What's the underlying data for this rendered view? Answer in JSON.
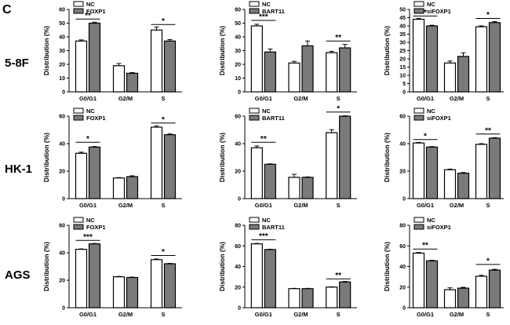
{
  "figure": {
    "panel_letter": "C",
    "rows": [
      "5-8F",
      "HK-1",
      "AGS"
    ],
    "colors": {
      "control_fill": "#ffffff",
      "treatment_fill": "#7a7a7a",
      "stroke": "#000000"
    }
  },
  "chart_data": [
    {
      "type": "bar",
      "row": "5-8F",
      "categories": [
        "G0/G1",
        "G2/M",
        "S"
      ],
      "series": [
        {
          "name": "NC",
          "values": [
            37,
            19,
            45
          ],
          "errors": [
            0.8,
            1.6,
            2.2
          ]
        },
        {
          "name": "FOXP1",
          "values": [
            50,
            13.5,
            37
          ],
          "errors": [
            0.7,
            0.5,
            1.0
          ]
        }
      ],
      "ylabel": "Distribution (%)",
      "ylim": [
        0,
        60
      ],
      "yticks": [
        0,
        10,
        20,
        30,
        40,
        50,
        60
      ],
      "ytick_labels": [
        "0",
        "10",
        "20",
        "30",
        "40",
        "50",
        "60"
      ],
      "significance": [
        {
          "category": "G0/G1",
          "text": "**",
          "at": 53
        },
        {
          "category": "S",
          "text": "*",
          "at": 49
        }
      ],
      "legend": "top-left"
    },
    {
      "type": "bar",
      "row": "5-8F",
      "categories": [
        "G0/G1",
        "G2/M",
        "S"
      ],
      "series": [
        {
          "name": "NC",
          "values": [
            48,
            21,
            28.5
          ],
          "errors": [
            1.2,
            1.2,
            1.0
          ]
        },
        {
          "name": "BART11",
          "values": [
            29,
            33.5,
            32
          ],
          "errors": [
            2.2,
            3.5,
            2.5
          ]
        }
      ],
      "ylabel": "Distribution (%)",
      "ylim": [
        0,
        60
      ],
      "yticks": [
        0,
        10,
        20,
        30,
        40,
        50,
        60
      ],
      "ytick_labels": [
        "0",
        "10",
        "20",
        "30",
        "40",
        "50",
        "60"
      ],
      "significance": [
        {
          "category": "G0/G1",
          "text": "***",
          "at": 52
        },
        {
          "category": "S",
          "text": "**",
          "at": 37
        }
      ],
      "legend": "top-left"
    },
    {
      "type": "bar",
      "row": "5-8F",
      "categories": [
        "G0/G1",
        "G2/M",
        "S"
      ],
      "series": [
        {
          "name": "NC",
          "values": [
            44,
            17.5,
            39.5
          ],
          "errors": [
            0.6,
            1.2,
            0.5
          ]
        },
        {
          "name": "siFOXP1",
          "values": [
            40,
            21.5,
            42
          ],
          "errors": [
            0.4,
            2.2,
            0.6
          ]
        }
      ],
      "ylabel": "Distribution (%)",
      "ylim": [
        0,
        50
      ],
      "yticks": [
        0,
        5,
        10,
        15,
        20,
        25,
        30,
        35,
        40,
        45,
        50
      ],
      "ytick_labels": [
        "0",
        "5",
        "10",
        "15",
        "20",
        "25",
        "30",
        "35",
        "40",
        "45",
        "50"
      ],
      "significance": [
        {
          "category": "G0/G1",
          "text": "*",
          "at": 46
        },
        {
          "category": "S",
          "text": "*",
          "at": 44.5
        }
      ],
      "legend": "top-left"
    },
    {
      "type": "bar",
      "row": "HK-1",
      "categories": [
        "G0/G1",
        "G2/M",
        "S"
      ],
      "series": [
        {
          "name": "NC",
          "values": [
            33,
            15,
            52
          ],
          "errors": [
            0.8,
            0.3,
            1.0
          ]
        },
        {
          "name": "FOXP1",
          "values": [
            37.5,
            16,
            46.5
          ],
          "errors": [
            0.4,
            0.6,
            0.6
          ]
        }
      ],
      "ylabel": "Distribution (%)",
      "ylim": [
        0,
        60
      ],
      "yticks": [
        0,
        20,
        40,
        60
      ],
      "ytick_labels": [
        "0",
        "20",
        "40",
        "60"
      ],
      "significance": [
        {
          "category": "G0/G1",
          "text": "*",
          "at": 41
        },
        {
          "category": "S",
          "text": "*",
          "at": 55
        }
      ],
      "legend": "top-left"
    },
    {
      "type": "bar",
      "row": "HK-1",
      "categories": [
        "G0/G1",
        "G2/M",
        "S"
      ],
      "series": [
        {
          "name": "NC",
          "values": [
            37,
            15.5,
            48
          ],
          "errors": [
            1.3,
            2.2,
            2.2
          ]
        },
        {
          "name": "BART11",
          "values": [
            25,
            15.5,
            60
          ],
          "errors": [
            0.3,
            0.3,
            0.3
          ]
        }
      ],
      "ylabel": "Distribution (%)",
      "ylim": [
        0,
        60
      ],
      "yticks": [
        0,
        20,
        40,
        60
      ],
      "ytick_labels": [
        "0",
        "20",
        "40",
        "60"
      ],
      "significance": [
        {
          "category": "G0/G1",
          "text": "**",
          "at": 41
        },
        {
          "category": "S",
          "text": "*",
          "at": 63
        }
      ],
      "legend": "top-left"
    },
    {
      "type": "bar",
      "row": "HK-1",
      "categories": [
        "G0/G1",
        "G2/M",
        "S"
      ],
      "series": [
        {
          "name": "NC",
          "values": [
            40.5,
            21,
            39.5
          ],
          "errors": [
            0.4,
            0.5,
            0.5
          ]
        },
        {
          "name": "siFOXP1",
          "values": [
            37.5,
            18.5,
            44
          ],
          "errors": [
            0.4,
            0.5,
            0.4
          ]
        }
      ],
      "ylabel": "Distribution (%)",
      "ylim": [
        0,
        60
      ],
      "yticks": [
        0,
        20,
        40,
        60
      ],
      "ytick_labels": [
        "0",
        "20",
        "40",
        "60"
      ],
      "significance": [
        {
          "category": "G0/G1",
          "text": "*",
          "at": 43
        },
        {
          "category": "S",
          "text": "**",
          "at": 47
        }
      ],
      "legend": "top-left"
    },
    {
      "type": "bar",
      "row": "AGS",
      "categories": [
        "G0/G1",
        "G2/M",
        "S"
      ],
      "series": [
        {
          "name": "NC",
          "values": [
            42.5,
            22.5,
            35
          ],
          "errors": [
            0.3,
            0.3,
            0.5
          ]
        },
        {
          "name": "FOXP1",
          "values": [
            46.5,
            22,
            32
          ],
          "errors": [
            0.3,
            0.3,
            0.3
          ]
        }
      ],
      "ylabel": "Distribution (%)",
      "ylim": [
        0,
        60
      ],
      "yticks": [
        0,
        20,
        40,
        60
      ],
      "ytick_labels": [
        "0",
        "20",
        "40",
        "60"
      ],
      "significance": [
        {
          "category": "G0/G1",
          "text": "***",
          "at": 49
        },
        {
          "category": "S",
          "text": "*",
          "at": 38
        }
      ],
      "legend": "top-left"
    },
    {
      "type": "bar",
      "row": "AGS",
      "categories": [
        "G0/G1",
        "G2/M",
        "S"
      ],
      "series": [
        {
          "name": "NC",
          "values": [
            62,
            18.5,
            20
          ],
          "errors": [
            0.4,
            0.3,
            0.3
          ]
        },
        {
          "name": "BART11",
          "values": [
            56.5,
            18.5,
            25
          ],
          "errors": [
            0.3,
            0.3,
            0.5
          ]
        }
      ],
      "ylabel": "Distribution (%)",
      "ylim": [
        0,
        80
      ],
      "yticks": [
        0,
        20,
        40,
        60,
        80
      ],
      "ytick_labels": [
        "0",
        "20",
        "40",
        "60",
        "80"
      ],
      "significance": [
        {
          "category": "G0/G1",
          "text": "***",
          "at": 66
        },
        {
          "category": "S",
          "text": "**",
          "at": 28
        }
      ],
      "legend": "top-left"
    },
    {
      "type": "bar",
      "row": "AGS",
      "categories": [
        "G0/G1",
        "G2/M",
        "S"
      ],
      "series": [
        {
          "name": "NC",
          "values": [
            53,
            17.5,
            30.5
          ],
          "errors": [
            0.6,
            1.8,
            1.0
          ]
        },
        {
          "name": "siFOXP1",
          "values": [
            45.5,
            19,
            36.5
          ],
          "errors": [
            0.6,
            0.8,
            0.8
          ]
        }
      ],
      "ylabel": "Distribution (%)",
      "ylim": [
        0,
        80
      ],
      "yticks": [
        0,
        20,
        40,
        60,
        80
      ],
      "ytick_labels": [
        "0",
        "20",
        "40",
        "60",
        "80"
      ],
      "significance": [
        {
          "category": "G0/G1",
          "text": "**",
          "at": 57
        },
        {
          "category": "S",
          "text": "*",
          "at": 42
        }
      ],
      "legend": "top-left"
    }
  ]
}
